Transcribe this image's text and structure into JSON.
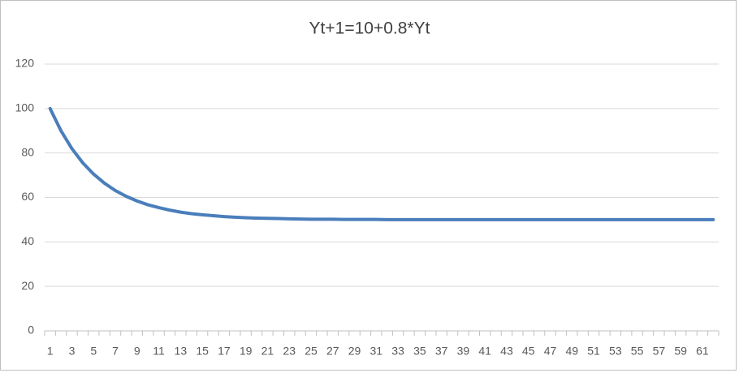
{
  "chart_data": {
    "type": "line",
    "title": "Yt+1=10+0.8*Yt",
    "categories": [
      1,
      null,
      3,
      null,
      5,
      null,
      7,
      null,
      9,
      null,
      11,
      null,
      13,
      null,
      15,
      null,
      17,
      null,
      19,
      null,
      21,
      null,
      23,
      null,
      25,
      null,
      27,
      null,
      29,
      null,
      31,
      null,
      33,
      null,
      35,
      null,
      37,
      null,
      39,
      null,
      41,
      null,
      43,
      null,
      45,
      null,
      47,
      null,
      49,
      null,
      51,
      null,
      53,
      null,
      55,
      null,
      57,
      null,
      59,
      null,
      61,
      null
    ],
    "series": [
      {
        "color": "#4a7ebb",
        "values": [
          100,
          90,
          82,
          75.6,
          70.5,
          66.4,
          63.1,
          60.5,
          58.4,
          56.7,
          55.4,
          54.3,
          53.4,
          52.7,
          52.2,
          51.8,
          51.4,
          51.1,
          50.9,
          50.7,
          50.6,
          50.5,
          50.4,
          50.3,
          50.2,
          50.2,
          50.2,
          50.1,
          50.1,
          50.1,
          50.1,
          50,
          50,
          50,
          50,
          50,
          50,
          50,
          50,
          50,
          50,
          50,
          50,
          50,
          50,
          50,
          50,
          50,
          50,
          50,
          50,
          50,
          50,
          50,
          50,
          50,
          50,
          50,
          50,
          50,
          50,
          50
        ]
      }
    ],
    "ylim": [
      0,
      120
    ],
    "yticks": [
      0,
      20,
      40,
      60,
      80,
      100,
      120
    ],
    "grid": true
  }
}
